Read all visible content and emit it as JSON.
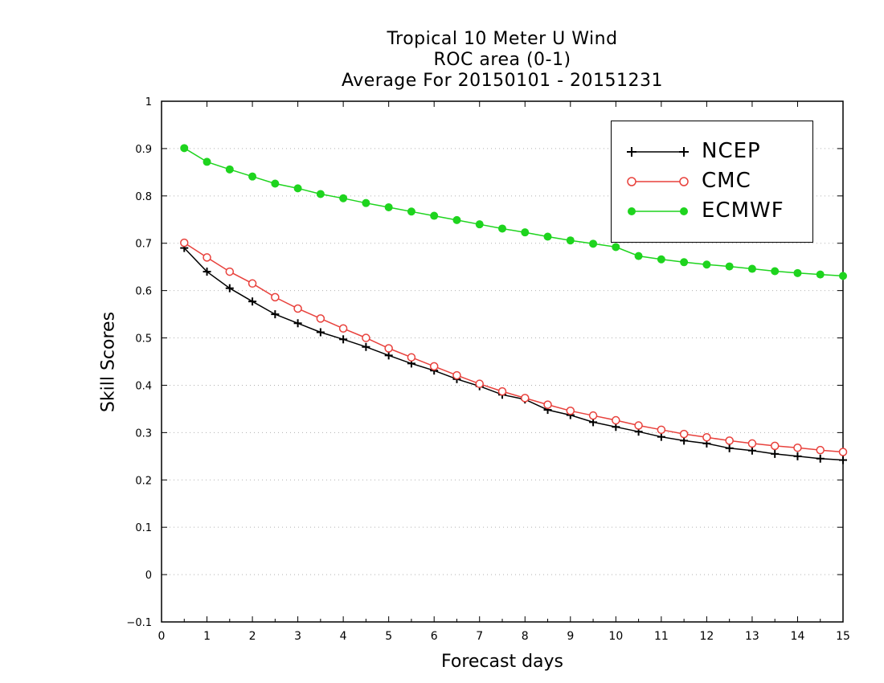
{
  "chart_data": {
    "type": "line",
    "title_lines": [
      "Tropical 10 Meter U Wind",
      "ROC area (0-1)",
      "Average For 20150101 - 20151231"
    ],
    "xlabel": "Forecast days",
    "ylabel": "Skill Scores",
    "xlim": [
      0,
      15
    ],
    "ylim": [
      -0.1,
      1
    ],
    "x_ticks": [
      "0",
      "1",
      "2",
      "3",
      "4",
      "5",
      "6",
      "7",
      "8",
      "9",
      "10",
      "11",
      "12",
      "13",
      "14",
      "15"
    ],
    "y_ticks": [
      "−0.1",
      "0",
      "0.1",
      "0.2",
      "0.3",
      "0.4",
      "0.5",
      "0.6",
      "0.7",
      "0.8",
      "0.9",
      "1"
    ],
    "grid": "horizontal dotted",
    "legend_position": "top-right",
    "x": [
      0.5,
      1,
      1.5,
      2,
      2.5,
      3,
      3.5,
      4,
      4.5,
      5,
      5.5,
      6,
      6.5,
      7,
      7.5,
      8,
      8.5,
      9,
      9.5,
      10,
      10.5,
      11,
      11.5,
      12,
      12.5,
      13,
      13.5,
      14,
      14.5,
      15
    ],
    "series": [
      {
        "name": "NCEP",
        "color": "#000000",
        "marker": "plus",
        "values": [
          0.69,
          0.64,
          0.605,
          0.577,
          0.55,
          0.531,
          0.512,
          0.497,
          0.481,
          0.463,
          0.446,
          0.431,
          0.413,
          0.398,
          0.38,
          0.37,
          0.348,
          0.337,
          0.322,
          0.312,
          0.302,
          0.291,
          0.283,
          0.277,
          0.267,
          0.262,
          0.255,
          0.25,
          0.245,
          0.242
        ]
      },
      {
        "name": "CMC",
        "color": "#e8413c",
        "marker": "open-circle",
        "values": [
          0.701,
          0.67,
          0.64,
          0.615,
          0.586,
          0.562,
          0.541,
          0.52,
          0.5,
          0.478,
          0.459,
          0.44,
          0.421,
          0.403,
          0.387,
          0.373,
          0.359,
          0.346,
          0.336,
          0.326,
          0.315,
          0.306,
          0.297,
          0.29,
          0.283,
          0.277,
          0.272,
          0.268,
          0.263,
          0.259
        ]
      },
      {
        "name": "ECMWF",
        "color": "#1ed41e",
        "marker": "filled-circle",
        "values": [
          0.901,
          0.872,
          0.856,
          0.841,
          0.826,
          0.816,
          0.804,
          0.795,
          0.785,
          0.776,
          0.767,
          0.758,
          0.749,
          0.74,
          0.731,
          0.723,
          0.714,
          0.706,
          0.699,
          0.692,
          0.673,
          0.666,
          0.66,
          0.655,
          0.651,
          0.646,
          0.641,
          0.637,
          0.634,
          0.631
        ]
      }
    ]
  }
}
